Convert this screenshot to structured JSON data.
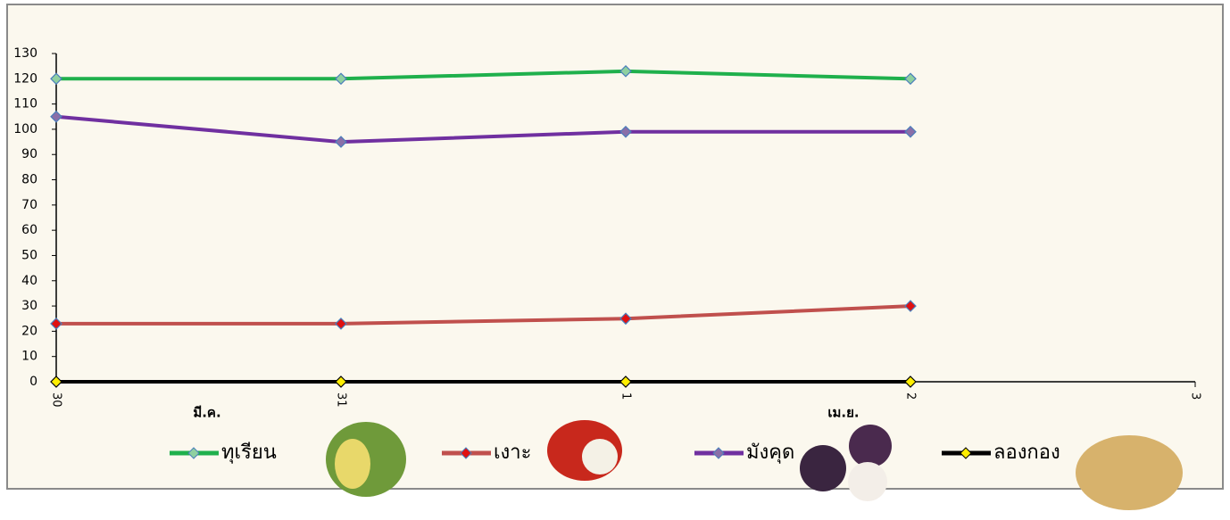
{
  "chart_data": {
    "type": "line",
    "categories": [
      "30",
      "31",
      "1",
      "2",
      "3"
    ],
    "group_labels": [
      "มี.ค.",
      "เม.ย."
    ],
    "series": [
      {
        "name": "ทุเรียน",
        "color": "#1fb04c",
        "marker_color": "#8fd0a0",
        "values": [
          120,
          120,
          123,
          120,
          null
        ]
      },
      {
        "name": "เงาะ",
        "color": "#c0504d",
        "marker_color": "#e01010",
        "values": [
          23,
          23,
          25,
          30,
          null
        ]
      },
      {
        "name": "มังคุด",
        "color": "#7030a0",
        "marker_color": "#8a6fa8",
        "values": [
          105,
          95,
          99,
          99,
          null
        ]
      },
      {
        "name": "ลองกอง",
        "color": "#000000",
        "marker_color": "#ffee00",
        "values": [
          0,
          0,
          0,
          0,
          null
        ]
      }
    ],
    "ylim": [
      0,
      130
    ],
    "yticks": [
      0,
      10,
      20,
      30,
      40,
      50,
      60,
      70,
      80,
      90,
      100,
      110,
      120,
      130
    ],
    "grid": false,
    "legend": "bottom"
  }
}
